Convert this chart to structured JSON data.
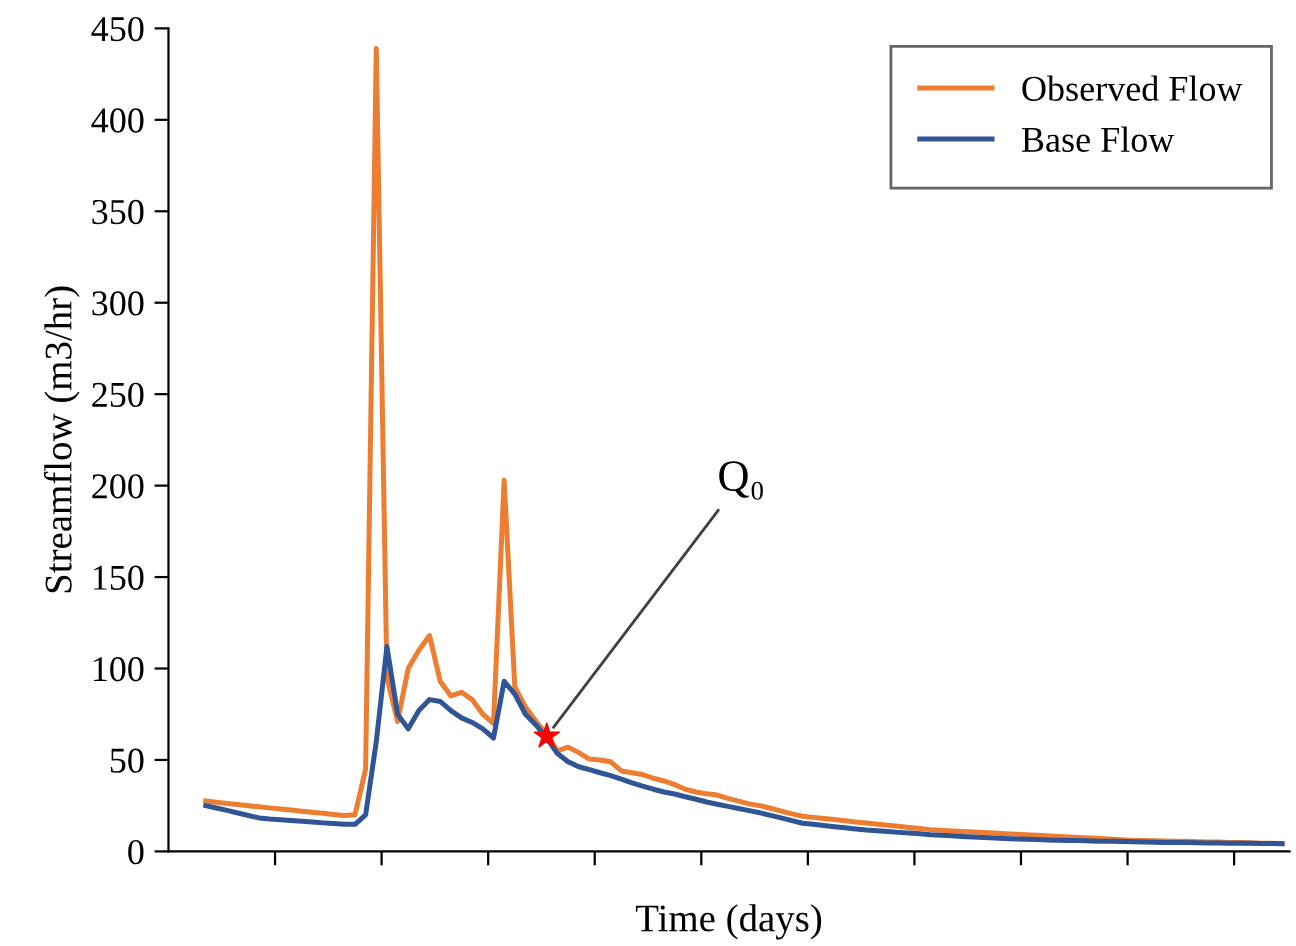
{
  "chart_data": {
    "type": "line",
    "xlabel": "Time (days)",
    "ylabel": "Streamflow (m3/hr)",
    "categories": [
      null,
      null,
      null,
      null,
      null,
      null,
      null,
      null,
      null,
      null,
      null,
      null,
      null,
      null,
      null,
      null,
      null,
      null,
      null,
      null,
      null,
      null,
      null,
      null,
      null,
      null,
      null,
      null,
      null,
      null,
      null,
      null,
      null,
      null,
      null,
      null,
      null,
      null,
      null,
      null,
      null,
      null,
      null,
      null,
      null,
      null,
      null,
      null,
      null,
      null,
      null,
      null,
      null,
      null,
      null,
      null,
      null,
      null,
      null,
      null,
      null,
      null,
      null,
      null,
      null,
      null,
      null,
      null,
      null,
      null,
      null,
      null,
      null,
      null,
      null,
      null,
      null,
      null,
      null,
      null,
      null,
      null,
      null,
      null,
      null,
      null,
      null,
      null,
      null,
      null,
      null,
      null,
      null,
      null,
      null,
      null,
      null,
      null,
      null,
      null,
      null,
      null,
      null,
      null,
      null
    ],
    "ylim": [
      0,
      450
    ],
    "yticks": [
      0,
      50,
      100,
      150,
      200,
      250,
      300,
      350,
      400,
      450
    ],
    "tick_labels": "y",
    "grid": false,
    "legend": "top right",
    "marker": "none",
    "line_style": "solid",
    "series": [
      {
        "name": "Observed Flow",
        "color": "#ed7d31",
        "values": [
          null,
          null,
          null,
          27.5,
          26.9,
          26.2,
          25.6,
          25,
          24.4,
          23.8,
          23.2,
          22.6,
          22,
          21.4,
          20.8,
          20.2,
          19.6,
          20,
          45,
          439,
          95,
          71,
          100,
          110,
          118,
          93,
          85,
          87,
          83,
          75,
          70,
          203,
          90,
          79,
          71,
          64,
          55,
          57,
          54,
          50.5,
          50,
          49,
          44,
          43,
          42,
          40,
          38.5,
          36.5,
          34,
          32.5,
          31.5,
          30.8,
          29,
          27.5,
          26,
          25,
          23.6,
          22,
          20.5,
          19.2,
          18.6,
          18,
          17.4,
          16.8,
          16.1,
          15.5,
          14.9,
          14.3,
          13.7,
          13.1,
          12.5,
          11.9,
          11.5,
          11.2,
          10.9,
          10.6,
          10.3,
          10,
          9.7,
          9.4,
          9.1,
          8.8,
          8.5,
          8.2,
          7.9,
          7.6,
          7.3,
          7,
          6.7,
          6.4,
          6,
          5.9,
          5.8,
          5.7,
          5.6,
          5.5,
          5.3,
          5.2,
          5.1,
          4.9,
          4.8,
          4.7,
          4.5,
          4.4,
          4.2
        ]
      },
      {
        "name": "Base Flow",
        "color": "#2f5597",
        "values": [
          null,
          null,
          null,
          25,
          23.7,
          22.4,
          21,
          19.6,
          18.3,
          17.7,
          17.3,
          16.9,
          16.5,
          16.1,
          15.6,
          15.2,
          14.8,
          14.8,
          20,
          60,
          112,
          75,
          67,
          77,
          83,
          82,
          77,
          73,
          70.5,
          67,
          62,
          93,
          86,
          75,
          69,
          62,
          53.5,
          49,
          46.3,
          44.7,
          43,
          41.4,
          39.5,
          37.5,
          35.7,
          34,
          32.5,
          31.4,
          29.9,
          28.5,
          27,
          25.8,
          24.6,
          23.5,
          22.3,
          21.1,
          19.7,
          18.3,
          16.8,
          15.4,
          14.8,
          14.2,
          13.5,
          12.9,
          12.3,
          11.7,
          11.3,
          10.9,
          10.4,
          10,
          9.6,
          9.1,
          8.8,
          8.5,
          8.2,
          7.9,
          7.6,
          7.3,
          7,
          6.8,
          6.7,
          6.5,
          6.3,
          6.1,
          6,
          5.9,
          5.7,
          5.6,
          5.5,
          5.4,
          5.3,
          5.1,
          5,
          4.9,
          4.8,
          4.8,
          4.7,
          4.6,
          4.6,
          4.5,
          4.5,
          4.4,
          4.3,
          4.3,
          4.2
        ]
      },
      {
        "type": "scatter",
        "color": "#ff0000",
        "marker": "star",
        "values": [
          null,
          null,
          null,
          null,
          null,
          null,
          null,
          null,
          null,
          null,
          null,
          null,
          null,
          null,
          null,
          null,
          null,
          null,
          null,
          null,
          null,
          null,
          null,
          null,
          null,
          null,
          null,
          null,
          null,
          null,
          null,
          null,
          null,
          null,
          null,
          63,
          null,
          null,
          null,
          null,
          null,
          null,
          null,
          null,
          null,
          null,
          null,
          null,
          null,
          null,
          null,
          null,
          null,
          null,
          null,
          null,
          null,
          null,
          null,
          null,
          null,
          null,
          null,
          null,
          null,
          null,
          null,
          null,
          null,
          null,
          null,
          null,
          null,
          null,
          null,
          null,
          null,
          null,
          null,
          null,
          null,
          null,
          null,
          null,
          null,
          null,
          null,
          null,
          null,
          null,
          null,
          null,
          null,
          null,
          null,
          null,
          null,
          null,
          null,
          null,
          null,
          null,
          null,
          null,
          null
        ]
      }
    ],
    "annotations": [
      "Q₀"
    ]
  }
}
